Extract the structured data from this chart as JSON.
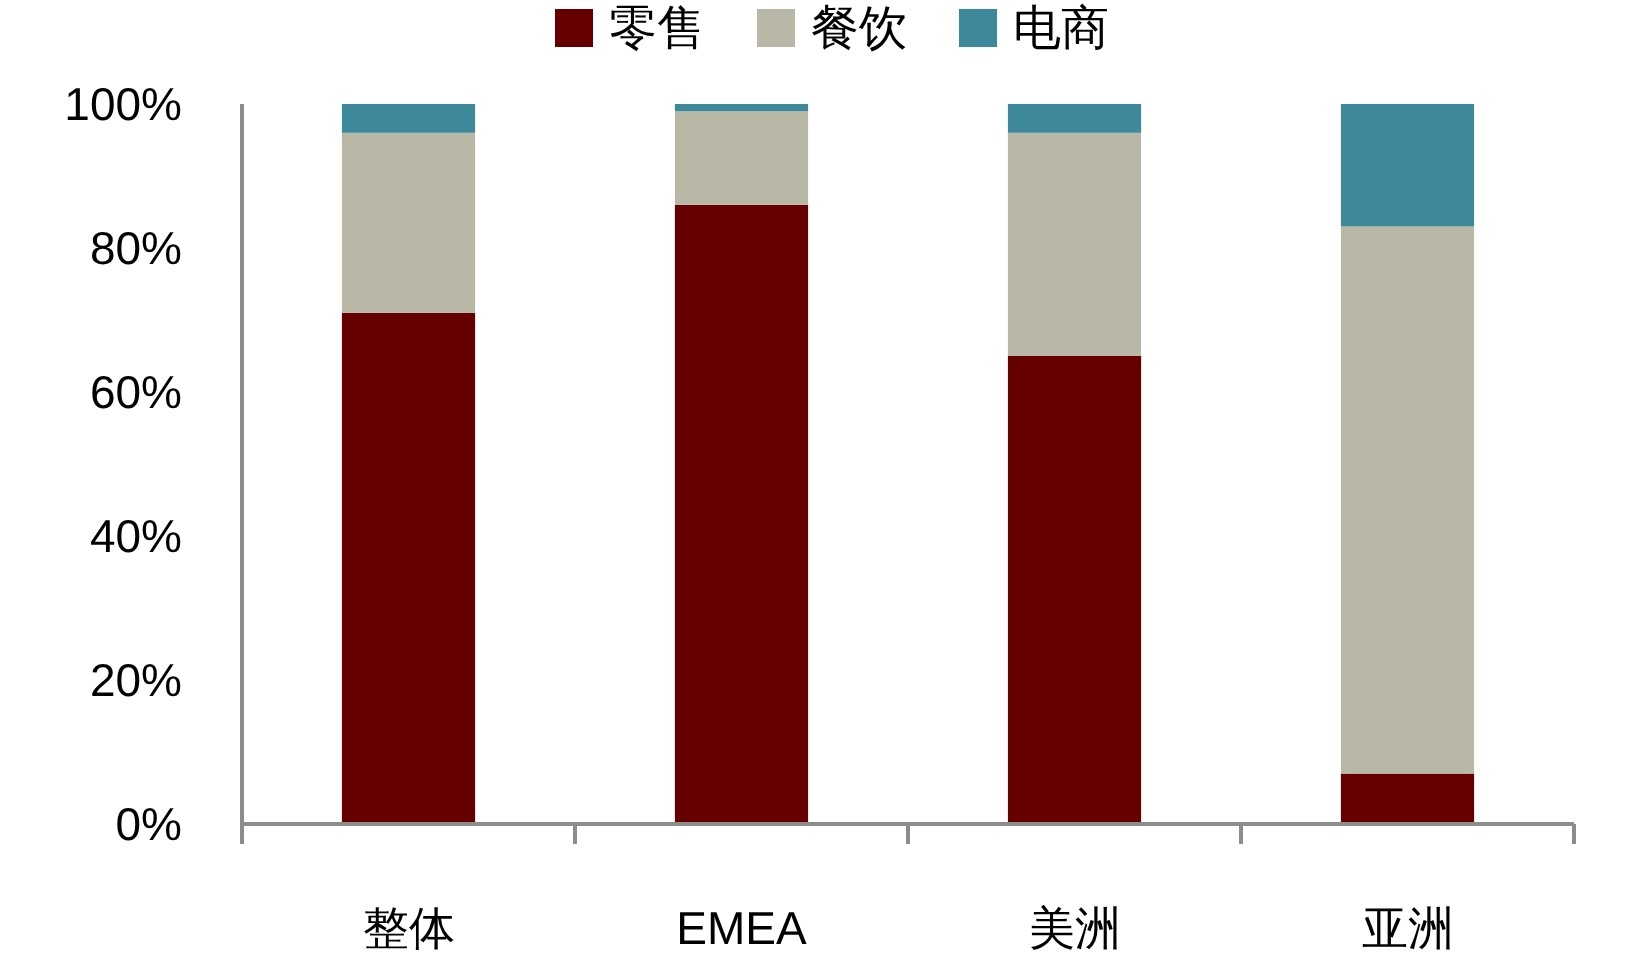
{
  "chart_data": {
    "type": "bar",
    "stacked": true,
    "categories": [
      "整体",
      "EMEA",
      "美洲",
      "亚洲"
    ],
    "series": [
      {
        "name": "零售",
        "color": "#660000",
        "values": [
          71,
          86,
          65,
          7
        ]
      },
      {
        "name": "餐饮",
        "color": "#b9b8a6",
        "values": [
          25,
          13,
          31,
          76
        ]
      },
      {
        "name": "电商",
        "color": "#3d889b",
        "values": [
          4,
          1,
          4,
          17
        ]
      }
    ],
    "ylim": [
      0,
      100
    ],
    "yticks": [
      {
        "value": 0,
        "label": "0%"
      },
      {
        "value": 20,
        "label": "20%"
      },
      {
        "value": 40,
        "label": "40%"
      },
      {
        "value": 60,
        "label": "60%"
      },
      {
        "value": 80,
        "label": "80%"
      },
      {
        "value": 100,
        "label": "100%"
      }
    ],
    "grid": false,
    "legend": "top"
  }
}
